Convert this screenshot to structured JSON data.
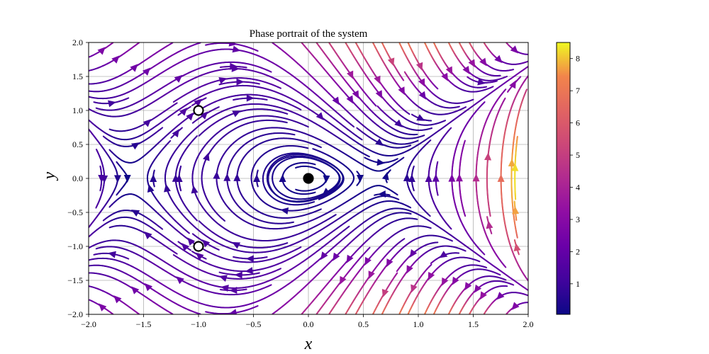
{
  "chart_data": {
    "type": "streamplot",
    "title": "Phase portrait of the system",
    "xlabel": "x",
    "ylabel": "y",
    "xlim": [
      -2.0,
      2.0
    ],
    "ylim": [
      -2.0,
      2.0
    ],
    "xticks": [
      "−2.0",
      "−1.5",
      "−1.0",
      "−0.5",
      "0.0",
      "0.5",
      "1.0",
      "1.5",
      "2.0"
    ],
    "yticks": [
      "−2.0",
      "−1.5",
      "−1.0",
      "−0.5",
      "0.0",
      "0.5",
      "1.0",
      "1.5",
      "2.0"
    ],
    "grid": true,
    "colormap": "plasma",
    "colorbar": {
      "range": [
        0.05,
        8.5
      ],
      "ticks": [
        "1",
        "2",
        "3",
        "4",
        "5",
        "6",
        "7",
        "8"
      ]
    },
    "equilibria": [
      {
        "x": 0.0,
        "y": 0.0,
        "marker": "filled"
      },
      {
        "x": -1.0,
        "y": 1.0,
        "marker": "open"
      },
      {
        "x": -1.0,
        "y": -1.0,
        "marker": "open"
      }
    ]
  }
}
